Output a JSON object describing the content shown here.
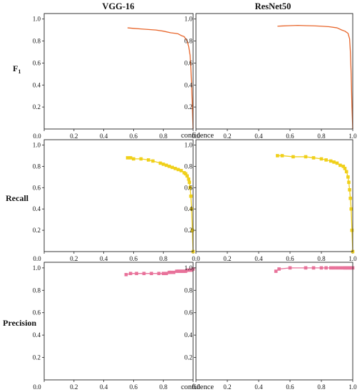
{
  "column_titles": [
    "VGG-16",
    "ResNet50"
  ],
  "row_labels": {
    "f1_main": "F",
    "f1_sub": "1",
    "recall": "Recall",
    "precision": "Precision"
  },
  "xlabel": "confidence",
  "chart_data": [
    {
      "type": "line",
      "panel": "f1-vgg16",
      "title": "VGG-16",
      "ylabel": "F1",
      "xlabel": "",
      "color": "#e8652a",
      "marker": "none",
      "xlim": [
        0,
        1
      ],
      "ylim": [
        0,
        1.05
      ],
      "xticks": [
        "0.0",
        "0.2",
        "0.4",
        "0.6",
        "0.8",
        "1.0"
      ],
      "yticks": [
        "0.2",
        "0.4",
        "0.6",
        "0.8",
        "1.0"
      ],
      "x": [
        0.56,
        0.6,
        0.65,
        0.7,
        0.75,
        0.8,
        0.85,
        0.88,
        0.9,
        0.92,
        0.94,
        0.96,
        0.97,
        0.98,
        0.985,
        0.99,
        0.995,
        1.0
      ],
      "y": [
        0.92,
        0.915,
        0.91,
        0.905,
        0.9,
        0.89,
        0.875,
        0.87,
        0.865,
        0.85,
        0.84,
        0.8,
        0.75,
        0.67,
        0.55,
        0.4,
        0.2,
        0.0
      ]
    },
    {
      "type": "line",
      "panel": "f1-resnet50",
      "title": "ResNet50",
      "ylabel": "F1",
      "xlabel": "",
      "color": "#e8652a",
      "marker": "none",
      "xlim": [
        0,
        1
      ],
      "ylim": [
        0,
        1.05
      ],
      "xticks": [
        "0.0",
        "0.2",
        "0.4",
        "0.6",
        "0.8",
        "1.0"
      ],
      "yticks": [
        "0.2",
        "0.4",
        "0.6",
        "0.8",
        "1.0"
      ],
      "x": [
        0.52,
        0.55,
        0.6,
        0.65,
        0.7,
        0.75,
        0.8,
        0.85,
        0.9,
        0.93,
        0.95,
        0.97,
        0.98,
        0.985,
        0.99,
        0.995,
        1.0
      ],
      "y": [
        0.935,
        0.937,
        0.94,
        0.942,
        0.94,
        0.938,
        0.935,
        0.93,
        0.92,
        0.9,
        0.89,
        0.87,
        0.82,
        0.7,
        0.5,
        0.2,
        0.0
      ]
    },
    {
      "type": "line",
      "panel": "recall-vgg16",
      "title": "",
      "ylabel": "Recall",
      "xlabel": "",
      "color": "#f0d01a",
      "marker": "square",
      "xlim": [
        0,
        1
      ],
      "ylim": [
        0,
        1.05
      ],
      "xticks": [
        "0.0",
        "0.2",
        "0.4",
        "0.6",
        "0.8",
        "1.0"
      ],
      "yticks": [
        "0.2",
        "0.4",
        "0.6",
        "0.8",
        "1.0"
      ],
      "x": [
        0.56,
        0.58,
        0.6,
        0.65,
        0.7,
        0.73,
        0.78,
        0.8,
        0.82,
        0.84,
        0.86,
        0.88,
        0.9,
        0.92,
        0.94,
        0.95,
        0.96,
        0.97,
        0.975,
        0.98,
        0.985,
        0.99,
        0.995,
        1.0
      ],
      "y": [
        0.88,
        0.88,
        0.87,
        0.87,
        0.86,
        0.85,
        0.83,
        0.82,
        0.81,
        0.8,
        0.79,
        0.78,
        0.77,
        0.76,
        0.74,
        0.73,
        0.71,
        0.68,
        0.65,
        0.6,
        0.52,
        0.4,
        0.2,
        0.0
      ]
    },
    {
      "type": "line",
      "panel": "recall-resnet50",
      "title": "",
      "ylabel": "Recall",
      "xlabel": "",
      "color": "#f0d01a",
      "marker": "square",
      "xlim": [
        0,
        1
      ],
      "ylim": [
        0,
        1.05
      ],
      "xticks": [
        "0.0",
        "0.2",
        "0.4",
        "0.6",
        "0.8",
        "1.0"
      ],
      "yticks": [
        "0.2",
        "0.4",
        "0.6",
        "0.8",
        "1.0"
      ],
      "x": [
        0.52,
        0.55,
        0.62,
        0.7,
        0.75,
        0.8,
        0.83,
        0.86,
        0.88,
        0.9,
        0.92,
        0.94,
        0.95,
        0.96,
        0.97,
        0.975,
        0.98,
        0.985,
        0.99,
        0.995,
        1.0
      ],
      "y": [
        0.9,
        0.9,
        0.89,
        0.89,
        0.88,
        0.87,
        0.86,
        0.85,
        0.84,
        0.83,
        0.81,
        0.8,
        0.78,
        0.75,
        0.7,
        0.65,
        0.58,
        0.5,
        0.4,
        0.2,
        0.0
      ]
    },
    {
      "type": "line",
      "panel": "precision-vgg16",
      "title": "",
      "ylabel": "Precision",
      "xlabel": "confidence",
      "color": "#e8729a",
      "marker": "square",
      "xlim": [
        0,
        1
      ],
      "ylim": [
        0,
        1.05
      ],
      "xticks": [
        "0.0",
        "0.2",
        "0.4",
        "0.6",
        "0.8",
        "1.0"
      ],
      "yticks": [
        "0.2",
        "0.4",
        "0.6",
        "0.8",
        "1.0"
      ],
      "x": [
        0.55,
        0.58,
        0.62,
        0.67,
        0.72,
        0.77,
        0.8,
        0.82,
        0.84,
        0.85,
        0.87,
        0.89,
        0.9,
        0.91,
        0.92,
        0.93,
        0.94,
        0.95,
        0.96,
        0.97,
        0.98,
        0.99,
        1.0
      ],
      "y": [
        0.94,
        0.95,
        0.95,
        0.95,
        0.95,
        0.95,
        0.95,
        0.95,
        0.96,
        0.96,
        0.96,
        0.97,
        0.97,
        0.97,
        0.97,
        0.97,
        0.97,
        0.97,
        0.98,
        0.98,
        0.98,
        0.98,
        0.99
      ]
    },
    {
      "type": "line",
      "panel": "precision-resnet50",
      "title": "",
      "ylabel": "Precision",
      "xlabel": "confidence",
      "color": "#e8729a",
      "marker": "square",
      "xlim": [
        0,
        1
      ],
      "ylim": [
        0,
        1.05
      ],
      "xticks": [
        "0.0",
        "0.2",
        "0.4",
        "0.6",
        "0.8",
        "1.0"
      ],
      "yticks": [
        "0.2",
        "0.4",
        "0.6",
        "0.8",
        "1.0"
      ],
      "x": [
        0.51,
        0.53,
        0.6,
        0.7,
        0.75,
        0.8,
        0.83,
        0.86,
        0.88,
        0.9,
        0.92,
        0.94,
        0.95,
        0.96,
        0.97,
        0.98,
        0.99,
        1.0
      ],
      "y": [
        0.97,
        0.99,
        1.0,
        1.0,
        1.0,
        1.0,
        1.0,
        1.0,
        1.0,
        1.0,
        1.0,
        1.0,
        1.0,
        1.0,
        1.0,
        1.0,
        1.0,
        1.0
      ]
    }
  ]
}
